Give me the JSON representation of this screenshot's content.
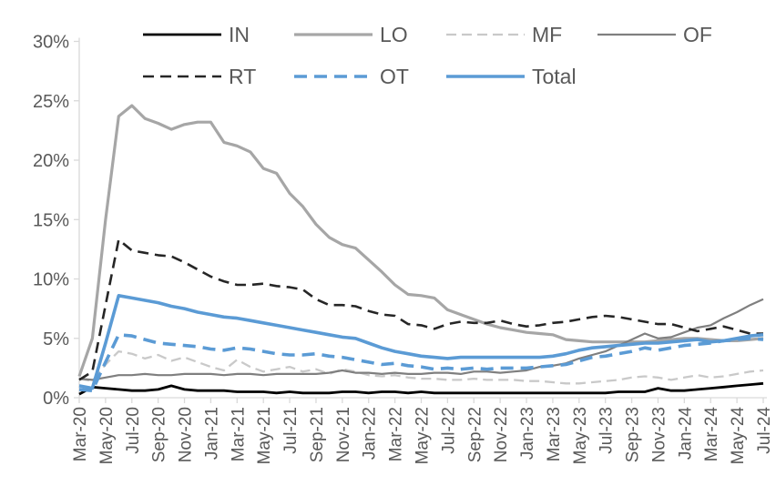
{
  "chart_data": {
    "type": "line",
    "title": "",
    "xlabel": "",
    "ylabel": "",
    "ylim": [
      0,
      30
    ],
    "y_tick_step": 5,
    "grid": false,
    "legend_position": "top",
    "legend_rows": [
      [
        "IN",
        "LO",
        "MF",
        "OF"
      ],
      [
        "RT",
        "OT",
        "Total"
      ]
    ],
    "y_tick_labels": [
      "0%",
      "5%",
      "10%",
      "15%",
      "20%",
      "25%",
      "30%"
    ],
    "x": [
      "Mar-20",
      "Apr-20",
      "May-20",
      "Jun-20",
      "Jul-20",
      "Aug-20",
      "Sep-20",
      "Oct-20",
      "Nov-20",
      "Dec-20",
      "Jan-21",
      "Feb-21",
      "Mar-21",
      "Apr-21",
      "May-21",
      "Jun-21",
      "Jul-21",
      "Aug-21",
      "Sep-21",
      "Oct-21",
      "Nov-21",
      "Dec-21",
      "Jan-22",
      "Feb-22",
      "Mar-22",
      "Apr-22",
      "May-22",
      "Jun-22",
      "Jul-22",
      "Aug-22",
      "Sep-22",
      "Oct-22",
      "Nov-22",
      "Dec-22",
      "Jan-23",
      "Feb-23",
      "Mar-23",
      "Apr-23",
      "May-23",
      "Jun-23",
      "Jul-23",
      "Aug-23",
      "Sep-23",
      "Oct-23",
      "Nov-23",
      "Dec-23",
      "Jan-24",
      "Feb-24",
      "Mar-24",
      "Apr-24",
      "May-24",
      "Jun-24",
      "Jul-24"
    ],
    "x_tick_labels": [
      "Mar-20",
      "May-20",
      "Jul-20",
      "Sep-20",
      "Nov-20",
      "Jan-21",
      "Mar-21",
      "May-21",
      "Jul-21",
      "Sep-21",
      "Nov-21",
      "Jan-22",
      "Mar-22",
      "May-22",
      "Jul-22",
      "Sep-22",
      "Nov-22",
      "Jan-23",
      "Mar-23",
      "May-23",
      "Jul-23",
      "Sep-23",
      "Nov-23",
      "Jan-24",
      "Mar-24",
      "May-24",
      "Jul-24"
    ],
    "series": [
      {
        "name": "IN",
        "color": "#000000",
        "dash": "",
        "width": 2.8,
        "values": [
          0.3,
          0.9,
          0.8,
          0.7,
          0.6,
          0.6,
          0.7,
          1.0,
          0.7,
          0.6,
          0.6,
          0.6,
          0.5,
          0.5,
          0.5,
          0.4,
          0.5,
          0.4,
          0.4,
          0.4,
          0.5,
          0.5,
          0.4,
          0.5,
          0.5,
          0.4,
          0.5,
          0.4,
          0.4,
          0.4,
          0.4,
          0.4,
          0.4,
          0.4,
          0.4,
          0.4,
          0.4,
          0.4,
          0.4,
          0.4,
          0.4,
          0.5,
          0.5,
          0.5,
          0.8,
          0.6,
          0.6,
          0.7,
          0.8,
          0.9,
          1.0,
          1.1,
          1.2
        ]
      },
      {
        "name": "LO",
        "color": "#a6a6a6",
        "dash": "",
        "width": 3.2,
        "values": [
          1.8,
          5.0,
          15.0,
          23.7,
          24.6,
          23.5,
          23.1,
          22.6,
          23.0,
          23.2,
          23.2,
          21.5,
          21.2,
          20.7,
          19.3,
          18.9,
          17.2,
          16.1,
          14.6,
          13.5,
          12.9,
          12.6,
          11.6,
          10.6,
          9.5,
          8.7,
          8.6,
          8.4,
          7.4,
          7.0,
          6.6,
          6.2,
          5.9,
          5.7,
          5.5,
          5.4,
          5.3,
          4.9,
          4.8,
          4.7,
          4.7,
          4.7,
          4.7,
          4.7,
          4.8,
          4.9,
          5.0,
          5.0,
          4.9,
          4.8,
          4.8,
          4.9,
          5.0
        ]
      },
      {
        "name": "MF",
        "color": "#c9c9c9",
        "dash": "11 6",
        "width": 2.3,
        "values": [
          1.6,
          1.4,
          2.8,
          3.9,
          3.7,
          3.3,
          3.6,
          3.1,
          3.4,
          3.0,
          2.6,
          2.3,
          3.2,
          2.6,
          2.2,
          2.4,
          2.6,
          2.2,
          2.4,
          2.0,
          2.4,
          2.2,
          1.9,
          1.8,
          1.9,
          1.7,
          1.6,
          1.6,
          1.5,
          1.5,
          1.6,
          1.5,
          1.5,
          1.5,
          1.4,
          1.4,
          1.3,
          1.2,
          1.2,
          1.3,
          1.4,
          1.5,
          1.7,
          1.8,
          1.7,
          1.5,
          1.7,
          1.9,
          1.7,
          1.8,
          2.0,
          2.2,
          2.3
        ]
      },
      {
        "name": "OF",
        "color": "#7f7f7f",
        "dash": "",
        "width": 2.2,
        "values": [
          1.6,
          1.5,
          1.7,
          1.9,
          1.9,
          2.0,
          1.9,
          1.9,
          2.0,
          2.0,
          2.0,
          1.9,
          2.0,
          2.0,
          1.9,
          2.0,
          2.0,
          2.0,
          2.0,
          2.1,
          2.3,
          2.1,
          2.1,
          2.0,
          2.1,
          2.0,
          2.0,
          2.1,
          2.1,
          2.0,
          2.2,
          2.2,
          2.1,
          2.2,
          2.3,
          2.6,
          2.7,
          2.9,
          3.3,
          3.6,
          3.9,
          4.4,
          4.9,
          5.4,
          5.0,
          5.1,
          5.5,
          5.9,
          6.1,
          6.7,
          7.2,
          7.8,
          8.3
        ]
      },
      {
        "name": "RT",
        "color": "#262626",
        "dash": "12 7",
        "width": 2.6,
        "values": [
          1.5,
          2.2,
          7.8,
          13.3,
          12.4,
          12.2,
          12.0,
          11.9,
          11.4,
          10.8,
          10.2,
          9.8,
          9.5,
          9.5,
          9.6,
          9.4,
          9.3,
          9.1,
          8.3,
          7.8,
          7.8,
          7.7,
          7.3,
          7.0,
          6.9,
          6.2,
          6.1,
          5.8,
          6.2,
          6.4,
          6.3,
          6.3,
          6.5,
          6.2,
          6.0,
          6.1,
          6.3,
          6.4,
          6.6,
          6.8,
          6.9,
          6.8,
          6.6,
          6.4,
          6.2,
          6.2,
          5.9,
          5.6,
          5.8,
          6.0,
          5.7,
          5.4,
          5.4
        ]
      },
      {
        "name": "OT",
        "color": "#5b9bd5",
        "dash": "14 8",
        "width": 3.6,
        "values": [
          0.7,
          0.6,
          3.0,
          5.3,
          5.2,
          4.9,
          4.6,
          4.5,
          4.4,
          4.3,
          4.1,
          4.0,
          4.2,
          4.1,
          3.9,
          3.7,
          3.6,
          3.6,
          3.7,
          3.5,
          3.4,
          3.2,
          3.0,
          2.8,
          2.9,
          2.7,
          2.6,
          2.4,
          2.5,
          2.4,
          2.5,
          2.4,
          2.5,
          2.5,
          2.5,
          2.6,
          2.7,
          2.8,
          3.1,
          3.4,
          3.5,
          3.7,
          3.9,
          4.2,
          4.0,
          4.2,
          4.4,
          4.5,
          4.6,
          4.8,
          4.9,
          5.0,
          4.9
        ]
      },
      {
        "name": "Total",
        "color": "#5b9bd5",
        "dash": "",
        "width": 3.6,
        "values": [
          1.0,
          0.8,
          4.6,
          8.6,
          8.4,
          8.2,
          8.0,
          7.7,
          7.5,
          7.2,
          7.0,
          6.8,
          6.7,
          6.5,
          6.3,
          6.1,
          5.9,
          5.7,
          5.5,
          5.3,
          5.1,
          5.0,
          4.6,
          4.2,
          3.9,
          3.7,
          3.5,
          3.4,
          3.3,
          3.4,
          3.4,
          3.4,
          3.4,
          3.4,
          3.4,
          3.4,
          3.5,
          3.7,
          4.0,
          4.2,
          4.3,
          4.4,
          4.5,
          4.6,
          4.6,
          4.7,
          4.8,
          4.9,
          4.7,
          4.8,
          5.0,
          5.2,
          5.3
        ]
      }
    ],
    "colors": {
      "axis": "#d9d9d9",
      "text": "#595959"
    }
  }
}
